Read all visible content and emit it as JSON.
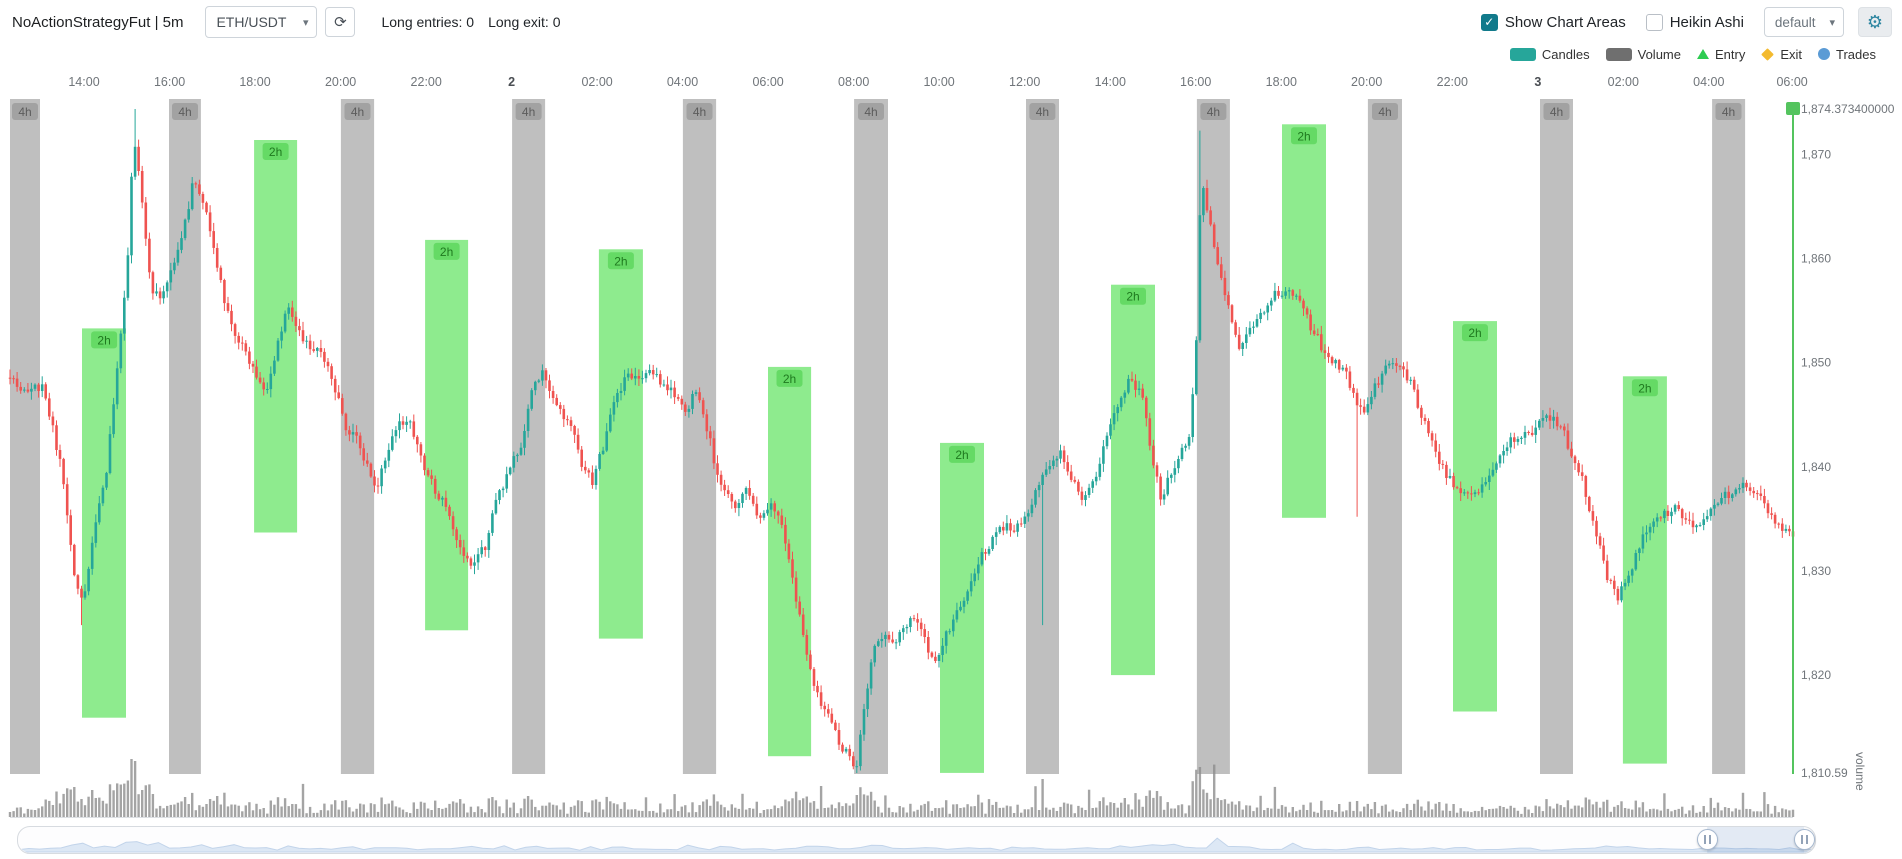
{
  "icons": {
    "chevron": "▾",
    "check": "✓",
    "refresh": "⟳",
    "gear": "⚙"
  },
  "header": {
    "title": "NoActionStrategyFut | 5m",
    "pair_select": {
      "value": "ETH/USDT"
    },
    "long_entries": "Long entries: 0",
    "long_exit": "Long exit: 0",
    "show_chart_areas": {
      "label": "Show Chart Areas",
      "checked": true
    },
    "heikin_ashi": {
      "label": "Heikin Ashi",
      "checked": false
    },
    "plot_config_select": {
      "value": "default"
    }
  },
  "legend": {
    "items": [
      {
        "label": "Candles",
        "shape": "rect",
        "color": "#26a69a"
      },
      {
        "label": "Volume",
        "shape": "rect",
        "color": "#6f6f6f"
      },
      {
        "label": "Entry",
        "shape": "triangle",
        "color": "#2ecc52"
      },
      {
        "label": "Exit",
        "shape": "diamond",
        "color": "#f3ba2f"
      },
      {
        "label": "Trades",
        "shape": "circle",
        "color": "#5b9bd5"
      }
    ]
  },
  "chart_data": {
    "type": "candlestick",
    "title": "ETH/USDT 5m candles with volume",
    "n_candles": 500,
    "price_max": 1874.3734,
    "price_min": 1810.59,
    "y_axis": {
      "max_label": "1,874.373400000",
      "min_label": "1,810.59",
      "ticks": [
        {
          "label": "1,870",
          "value": 1870
        },
        {
          "label": "1,860",
          "value": 1860
        },
        {
          "label": "1,850",
          "value": 1850
        },
        {
          "label": "1,840",
          "value": 1840
        },
        {
          "label": "1,830",
          "value": 1830
        },
        {
          "label": "1,820",
          "value": 1820
        }
      ]
    },
    "volume_axis_label": "volume",
    "x_axis_labels": [
      {
        "label": "14:00",
        "t": 0.0415,
        "bold": false
      },
      {
        "label": "16:00",
        "t": 0.0895,
        "bold": false
      },
      {
        "label": "18:00",
        "t": 0.1374,
        "bold": false
      },
      {
        "label": "20:00",
        "t": 0.1854,
        "bold": false
      },
      {
        "label": "22:00",
        "t": 0.2334,
        "bold": false
      },
      {
        "label": "2",
        "t": 0.2813,
        "bold": true
      },
      {
        "label": "02:00",
        "t": 0.3293,
        "bold": false
      },
      {
        "label": "04:00",
        "t": 0.3772,
        "bold": false
      },
      {
        "label": "06:00",
        "t": 0.4252,
        "bold": false
      },
      {
        "label": "08:00",
        "t": 0.4732,
        "bold": false
      },
      {
        "label": "10:00",
        "t": 0.5211,
        "bold": false
      },
      {
        "label": "12:00",
        "t": 0.5691,
        "bold": false
      },
      {
        "label": "14:00",
        "t": 0.6171,
        "bold": false
      },
      {
        "label": "16:00",
        "t": 0.665,
        "bold": false
      },
      {
        "label": "18:00",
        "t": 0.713,
        "bold": false
      },
      {
        "label": "20:00",
        "t": 0.7609,
        "bold": false
      },
      {
        "label": "22:00",
        "t": 0.8089,
        "bold": false
      },
      {
        "label": "3",
        "t": 0.8569,
        "bold": true
      },
      {
        "label": "02:00",
        "t": 0.9048,
        "bold": false
      },
      {
        "label": "04:00",
        "t": 0.9528,
        "bold": false
      },
      {
        "label": "06:00",
        "t": 0.9995,
        "bold": false
      }
    ],
    "price_path": [
      [
        0.0,
        1849.0
      ],
      [
        0.0082,
        1847.0
      ],
      [
        0.0184,
        1848.0
      ],
      [
        0.0286,
        1840.0
      ],
      [
        0.0367,
        1829.0
      ],
      [
        0.0408,
        1826.5
      ],
      [
        0.0476,
        1834.0
      ],
      [
        0.0544,
        1840.0
      ],
      [
        0.0612,
        1851.0
      ],
      [
        0.066,
        1860.0
      ],
      [
        0.0694,
        1872.0
      ],
      [
        0.0748,
        1864.0
      ],
      [
        0.0796,
        1857.0
      ],
      [
        0.085,
        1856.0
      ],
      [
        0.0905,
        1859.0
      ],
      [
        0.0966,
        1862.0
      ],
      [
        0.1034,
        1868.0
      ],
      [
        0.1088,
        1865.0
      ],
      [
        0.1136,
        1862.0
      ],
      [
        0.119,
        1857.0
      ],
      [
        0.1252,
        1853.0
      ],
      [
        0.1306,
        1851.5
      ],
      [
        0.1374,
        1849.0
      ],
      [
        0.1429,
        1847.0
      ],
      [
        0.149,
        1851.0
      ],
      [
        0.1558,
        1855.5
      ],
      [
        0.1612,
        1853.0
      ],
      [
        0.168,
        1851.5
      ],
      [
        0.1748,
        1851.0
      ],
      [
        0.1816,
        1848.0
      ],
      [
        0.1884,
        1844.0
      ],
      [
        0.1952,
        1842.5
      ],
      [
        0.2007,
        1840.0
      ],
      [
        0.2054,
        1837.5
      ],
      [
        0.2109,
        1841.0
      ],
      [
        0.2177,
        1844.5
      ],
      [
        0.2245,
        1844.0
      ],
      [
        0.2306,
        1841.0
      ],
      [
        0.2361,
        1838.5
      ],
      [
        0.2415,
        1837.0
      ],
      [
        0.2476,
        1834.5
      ],
      [
        0.2531,
        1832.0
      ],
      [
        0.2599,
        1830.5
      ],
      [
        0.2667,
        1832.5
      ],
      [
        0.2735,
        1837.0
      ],
      [
        0.2803,
        1840.0
      ],
      [
        0.2871,
        1842.0
      ],
      [
        0.2925,
        1847.0
      ],
      [
        0.2986,
        1849.5
      ],
      [
        0.3041,
        1846.5
      ],
      [
        0.3095,
        1845.0
      ],
      [
        0.3156,
        1843.5
      ],
      [
        0.3211,
        1840.0
      ],
      [
        0.3265,
        1838.5
      ],
      [
        0.3327,
        1842.0
      ],
      [
        0.3395,
        1846.5
      ],
      [
        0.3463,
        1849.0
      ],
      [
        0.3531,
        1848.5
      ],
      [
        0.3599,
        1849.5
      ],
      [
        0.366,
        1848.0
      ],
      [
        0.3721,
        1847.0
      ],
      [
        0.3789,
        1845.0
      ],
      [
        0.385,
        1847.5
      ],
      [
        0.3905,
        1844.0
      ],
      [
        0.3959,
        1840.0
      ],
      [
        0.4014,
        1837.5
      ],
      [
        0.4075,
        1836.0
      ],
      [
        0.4143,
        1838.0
      ],
      [
        0.4197,
        1834.5
      ],
      [
        0.4259,
        1836.5
      ],
      [
        0.432,
        1835.0
      ],
      [
        0.4381,
        1830.0
      ],
      [
        0.4435,
        1825.0
      ],
      [
        0.449,
        1820.5
      ],
      [
        0.4544,
        1817.5
      ],
      [
        0.4599,
        1816.0
      ],
      [
        0.4653,
        1813.5
      ],
      [
        0.4707,
        1812.0
      ],
      [
        0.4748,
        1810.8
      ],
      [
        0.4789,
        1817.0
      ],
      [
        0.4844,
        1822.5
      ],
      [
        0.4898,
        1824.0
      ],
      [
        0.4959,
        1823.0
      ],
      [
        0.502,
        1824.5
      ],
      [
        0.5082,
        1825.5
      ],
      [
        0.5136,
        1823.0
      ],
      [
        0.519,
        1821.5
      ],
      [
        0.5252,
        1824.0
      ],
      [
        0.532,
        1826.5
      ],
      [
        0.5388,
        1829.0
      ],
      [
        0.5456,
        1831.5
      ],
      [
        0.5524,
        1833.5
      ],
      [
        0.5592,
        1834.5
      ],
      [
        0.566,
        1834.0
      ],
      [
        0.5728,
        1836.5
      ],
      [
        0.5782,
        1838.5
      ],
      [
        0.5837,
        1840.0
      ],
      [
        0.5898,
        1841.5
      ],
      [
        0.5959,
        1838.5
      ],
      [
        0.602,
        1837.0
      ],
      [
        0.6082,
        1838.5
      ],
      [
        0.615,
        1843.0
      ],
      [
        0.6218,
        1846.5
      ],
      [
        0.6286,
        1848.5
      ],
      [
        0.6347,
        1847.0
      ],
      [
        0.6408,
        1841.0
      ],
      [
        0.6456,
        1837.0
      ],
      [
        0.651,
        1839.5
      ],
      [
        0.6565,
        1841.5
      ],
      [
        0.6619,
        1843.0
      ],
      [
        0.6653,
        1852.0
      ],
      [
        0.668,
        1868.0
      ],
      [
        0.6721,
        1864.0
      ],
      [
        0.6762,
        1860.0
      ],
      [
        0.6803,
        1857.0
      ],
      [
        0.685,
        1854.0
      ],
      [
        0.6898,
        1851.5
      ],
      [
        0.6952,
        1853.0
      ],
      [
        0.702,
        1855.0
      ],
      [
        0.7088,
        1856.5
      ],
      [
        0.7156,
        1857.0
      ],
      [
        0.7224,
        1856.0
      ],
      [
        0.7293,
        1853.5
      ],
      [
        0.7361,
        1851.5
      ],
      [
        0.7429,
        1850.0
      ],
      [
        0.7497,
        1849.0
      ],
      [
        0.7551,
        1846.0
      ],
      [
        0.7605,
        1845.5
      ],
      [
        0.7667,
        1848.0
      ],
      [
        0.7735,
        1850.0
      ],
      [
        0.7803,
        1849.5
      ],
      [
        0.7857,
        1848.0
      ],
      [
        0.7918,
        1845.0
      ],
      [
        0.7973,
        1842.5
      ],
      [
        0.8041,
        1839.5
      ],
      [
        0.8102,
        1838.0
      ],
      [
        0.8163,
        1837.0
      ],
      [
        0.8224,
        1837.5
      ],
      [
        0.8286,
        1839.0
      ],
      [
        0.8354,
        1841.0
      ],
      [
        0.8422,
        1842.5
      ],
      [
        0.849,
        1843.0
      ],
      [
        0.8558,
        1843.5
      ],
      [
        0.8626,
        1845.0
      ],
      [
        0.8694,
        1844.0
      ],
      [
        0.8755,
        1841.5
      ],
      [
        0.8823,
        1838.5
      ],
      [
        0.8891,
        1834.0
      ],
      [
        0.8959,
        1829.5
      ],
      [
        0.9014,
        1827.5
      ],
      [
        0.9068,
        1829.0
      ],
      [
        0.9129,
        1832.0
      ],
      [
        0.9197,
        1834.5
      ],
      [
        0.9265,
        1835.5
      ],
      [
        0.9333,
        1836.0
      ],
      [
        0.9401,
        1835.0
      ],
      [
        0.9469,
        1834.0
      ],
      [
        0.9537,
        1835.5
      ],
      [
        0.9605,
        1837.0
      ],
      [
        0.9673,
        1837.5
      ],
      [
        0.9741,
        1838.5
      ],
      [
        0.981,
        1837.0
      ],
      [
        0.9878,
        1835.5
      ],
      [
        0.9946,
        1834.0
      ],
      [
        1.0,
        1833.5
      ]
    ],
    "spikes": [
      {
        "t": 0.0694,
        "high": 1874.3734,
        "vol": 56
      },
      {
        "t": 0.0408,
        "low": 1824.8,
        "vol": 18
      },
      {
        "t": 0.4748,
        "low": 1810.59,
        "vol": 22
      },
      {
        "t": 0.5782,
        "low": 1824.8,
        "vol": 38
      },
      {
        "t": 0.668,
        "high": 1872.3,
        "vol": 50
      },
      {
        "t": 0.7551,
        "low": 1835.2,
        "vol": 16
      }
    ],
    "areas_4h": {
      "label": "4h",
      "bands": [
        [
          0.0,
          0.0168
        ],
        [
          0.0892,
          0.1071
        ],
        [
          0.1856,
          0.2042
        ],
        [
          0.2816,
          0.3001
        ],
        [
          0.3774,
          0.396
        ],
        [
          0.4734,
          0.4924
        ],
        [
          0.5698,
          0.5883
        ],
        [
          0.6657,
          0.6842
        ],
        [
          0.7616,
          0.7807
        ],
        [
          0.8581,
          0.8766
        ],
        [
          0.9546,
          0.9731
        ]
      ]
    },
    "areas_2h": {
      "label": "2h",
      "bands": [
        [
          0.0404,
          0.0651,
          1853.3,
          1815.9
        ],
        [
          0.1369,
          0.161,
          1871.4,
          1833.7
        ],
        [
          0.2328,
          0.2569,
          1861.8,
          1824.3
        ],
        [
          0.3303,
          0.355,
          1860.9,
          1823.5
        ],
        [
          0.4251,
          0.4493,
          1849.6,
          1812.2
        ],
        [
          0.5216,
          0.5463,
          1842.3,
          1810.6
        ],
        [
          0.6175,
          0.6422,
          1857.5,
          1820.0
        ],
        [
          0.7134,
          0.7381,
          1872.9,
          1835.1
        ],
        [
          0.8093,
          0.834,
          1854.0,
          1816.5
        ],
        [
          0.9046,
          0.9293,
          1848.7,
          1811.5
        ]
      ]
    },
    "colors": {
      "up": "#26a69a",
      "down": "#ef5350",
      "volume": "#8d8d8d",
      "area_4h": "rgba(128,128,128,0.5)",
      "area_4h_label_bg": "rgba(110,110,110,0.35)",
      "area_4h_label_text": "#5c5c5c",
      "area_2h": "rgba(30,215,30,0.5)",
      "area_2h_label_bg": "rgba(25,185,25,0.35)",
      "area_2h_label_text": "#1f7a1f",
      "current_line": "#54c45e",
      "axis_text": "#70757a"
    }
  },
  "slider": {
    "left_handle_t": 0.94,
    "right_handle_t": 0.9939
  }
}
